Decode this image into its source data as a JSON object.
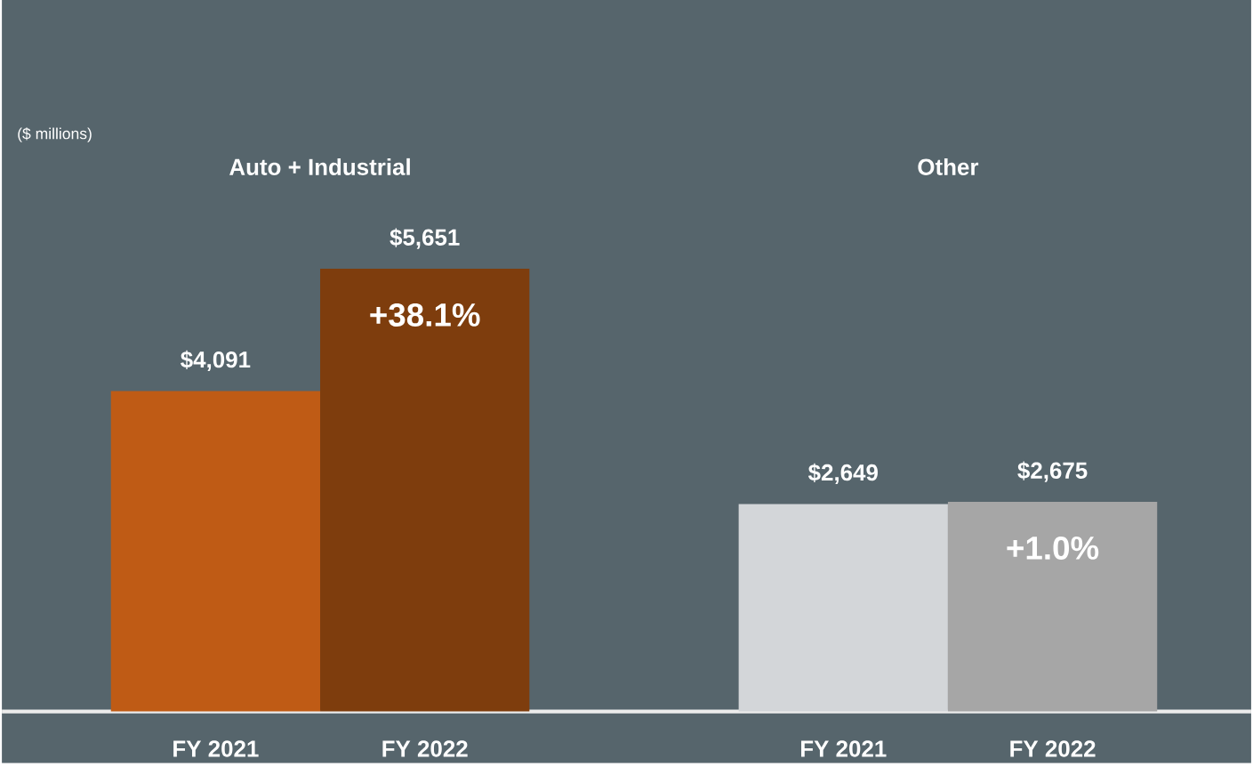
{
  "chart_data": {
    "type": "bar",
    "categories": [
      "FY 2021",
      "FY 2022",
      null,
      "FY 2021",
      "FY 2022"
    ],
    "values": [
      4091,
      5651,
      null,
      2649,
      2675
    ],
    "colors": [
      "#bf5b15",
      "#7e3d0d",
      null,
      "#d3d6d9",
      "#a6a6a6"
    ],
    "value_labels": [
      "$4,091",
      "$5,651",
      null,
      "$2,649",
      "$2,675"
    ],
    "annotations": [
      "($ millions)",
      "Auto + Industrial",
      "Other",
      "+38.1%",
      "+1.0%"
    ]
  }
}
